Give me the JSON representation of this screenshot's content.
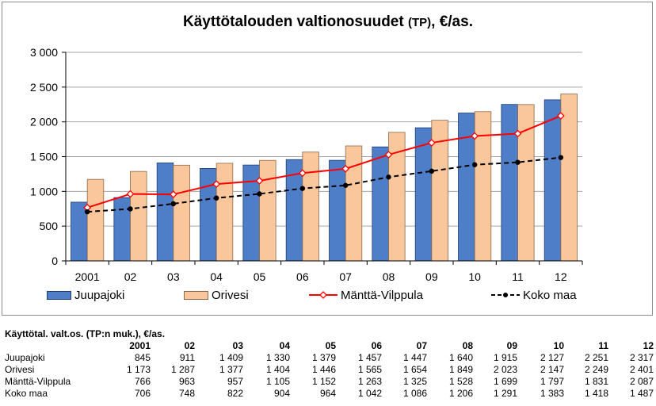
{
  "chart_data": {
    "type": "bar",
    "title": "Käyttötalouden valtionosuudet",
    "title_tp": "(TP)",
    "title_unit": ", €/as.",
    "categories": [
      "2001",
      "02",
      "03",
      "04",
      "05",
      "06",
      "07",
      "08",
      "09",
      "10",
      "11",
      "12"
    ],
    "y_ticks": [
      "0",
      "500",
      "1 000",
      "1 500",
      "2 000",
      "2 500",
      "3 000"
    ],
    "ylim": [
      0,
      3000
    ],
    "grid": true,
    "legend_position": "bottom",
    "series": [
      {
        "name": "Juupajoki",
        "kind": "bar",
        "color": "#4f7ec9",
        "values": [
          845,
          911,
          1409,
          1330,
          1379,
          1457,
          1447,
          1640,
          1915,
          2127,
          2251,
          2317
        ]
      },
      {
        "name": "Orivesi",
        "kind": "bar",
        "color": "#f9c79b",
        "values": [
          1173,
          1287,
          1377,
          1404,
          1446,
          1565,
          1654,
          1849,
          2023,
          2147,
          2249,
          2401
        ]
      },
      {
        "name": "Mänttä-Vilppula",
        "kind": "line",
        "color": "#ff0000",
        "values": [
          766,
          963,
          957,
          1105,
          1152,
          1263,
          1325,
          1528,
          1699,
          1797,
          1831,
          2087
        ]
      },
      {
        "name": "Koko maa",
        "kind": "dashed-line",
        "color": "#000000",
        "values": [
          706,
          748,
          822,
          904,
          964,
          1042,
          1086,
          1206,
          1291,
          1383,
          1418,
          1487
        ]
      }
    ]
  },
  "table": {
    "caption": "Käyttötal. valt.os. (TP:n muk.), €/as.",
    "headers": [
      "2001",
      "02",
      "03",
      "04",
      "05",
      "06",
      "07",
      "08",
      "09",
      "10",
      "11",
      "12"
    ],
    "rows": [
      {
        "label": "Juupajoki",
        "values": [
          "845",
          "911",
          "1 409",
          "1 330",
          "1 379",
          "1 457",
          "1 447",
          "1 640",
          "1 915",
          "2 127",
          "2 251",
          "2 317"
        ]
      },
      {
        "label": "Orivesi",
        "values": [
          "1 173",
          "1 287",
          "1 377",
          "1 404",
          "1 446",
          "1 565",
          "1 654",
          "1 849",
          "2 023",
          "2 147",
          "2 249",
          "2 401"
        ]
      },
      {
        "label": "Mänttä-Vilppula",
        "values": [
          "766",
          "963",
          "957",
          "1 105",
          "1 152",
          "1 263",
          "1 325",
          "1 528",
          "1 699",
          "1 797",
          "1 831",
          "2 087"
        ]
      },
      {
        "label": "Koko maa",
        "values": [
          "706",
          "748",
          "822",
          "904",
          "964",
          "1 042",
          "1 086",
          "1 206",
          "1 291",
          "1 383",
          "1 418",
          "1 487"
        ]
      }
    ]
  }
}
